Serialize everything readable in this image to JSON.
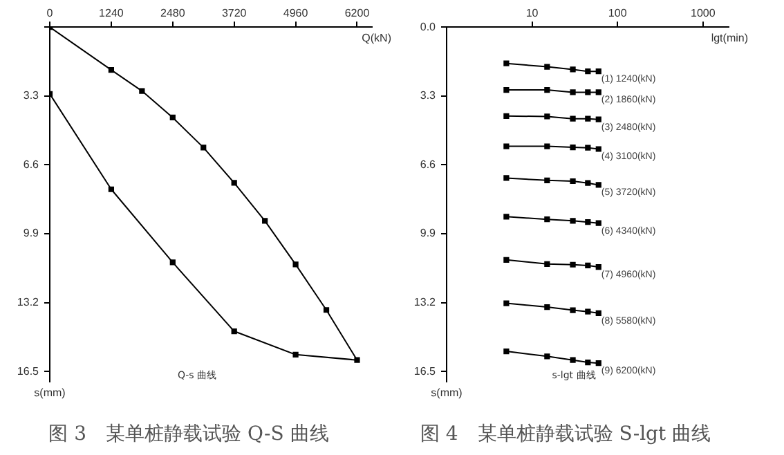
{
  "chart_data": [
    {
      "type": "line",
      "title": "图 3　某单桩静载试验 Q-S 曲线",
      "xlabel": "Q(kN)",
      "ylabel": "s(mm)",
      "annotations": [
        "Q-s 曲线"
      ],
      "xlim": [
        0,
        6500
      ],
      "ylim": [
        17,
        0
      ],
      "xticks": [
        0,
        1240,
        2480,
        3720,
        4960,
        6200
      ],
      "yticks": [
        {
          "value": 0,
          "label": null
        },
        3.3,
        6.6,
        9.9,
        13.2,
        16.5
      ],
      "grid": false,
      "legend": false,
      "marker": "square",
      "line_style": "solid",
      "series": [
        {
          "color": "#000000",
          "x": [
            0,
            1240,
            1860,
            2480,
            3100,
            3720,
            4340,
            4960,
            5580,
            6200,
            4960,
            3720,
            2480,
            1240,
            0
          ],
          "values": [
            0,
            2.05,
            3.06,
            4.33,
            5.77,
            7.46,
            9.28,
            11.37,
            13.55,
            15.95,
            15.69,
            14.57,
            11.27,
            7.77,
            3.2
          ]
        }
      ]
    },
    {
      "type": "line",
      "title": "图 4　某单桩静载试验 S-lgt 曲线",
      "xlabel": "lgt(min)",
      "ylabel": "s(mm)",
      "annotations": [
        "s-lgt 曲线"
      ],
      "log": "x",
      "xlim": [
        1,
        2000
      ],
      "ylim": [
        17,
        0
      ],
      "xticks": [
        10,
        100,
        1000
      ],
      "yticks": [
        {
          "value": 0,
          "label": "0.0"
        },
        3.3,
        6.6,
        9.9,
        13.2,
        16.5
      ],
      "grid": false,
      "legend": false,
      "marker": "square",
      "line_style": "solid",
      "x": [
        5,
        15,
        30,
        45,
        60
      ],
      "series": [
        {
          "name": "(1) 1240(kN)",
          "color": "#000000",
          "values": [
            1.74,
            1.9,
            2.03,
            2.12,
            2.12
          ]
        },
        {
          "name": "(2) 1860(kN)",
          "color": "#000000",
          "values": [
            3.01,
            3.01,
            3.12,
            3.12,
            3.12
          ]
        },
        {
          "name": "(3) 2480(kN)",
          "color": "#000000",
          "values": [
            4.26,
            4.28,
            4.39,
            4.39,
            4.42
          ]
        },
        {
          "name": "(4) 3100(kN)",
          "color": "#000000",
          "values": [
            5.71,
            5.71,
            5.76,
            5.78,
            5.84
          ]
        },
        {
          "name": "(5) 3720(kN)",
          "color": "#000000",
          "values": [
            7.23,
            7.34,
            7.38,
            7.47,
            7.56
          ]
        },
        {
          "name": "(6) 4340(kN)",
          "color": "#000000",
          "values": [
            9.08,
            9.21,
            9.28,
            9.34,
            9.39
          ]
        },
        {
          "name": "(7) 4960(kN)",
          "color": "#000000",
          "values": [
            11.15,
            11.35,
            11.38,
            11.42,
            11.49
          ]
        },
        {
          "name": "(8) 5580(kN)",
          "color": "#000000",
          "values": [
            13.23,
            13.41,
            13.56,
            13.63,
            13.7
          ]
        },
        {
          "name": "(9) 6200(kN)",
          "color": "#000000",
          "values": [
            15.53,
            15.77,
            15.95,
            16.06,
            16.1
          ]
        }
      ]
    }
  ]
}
